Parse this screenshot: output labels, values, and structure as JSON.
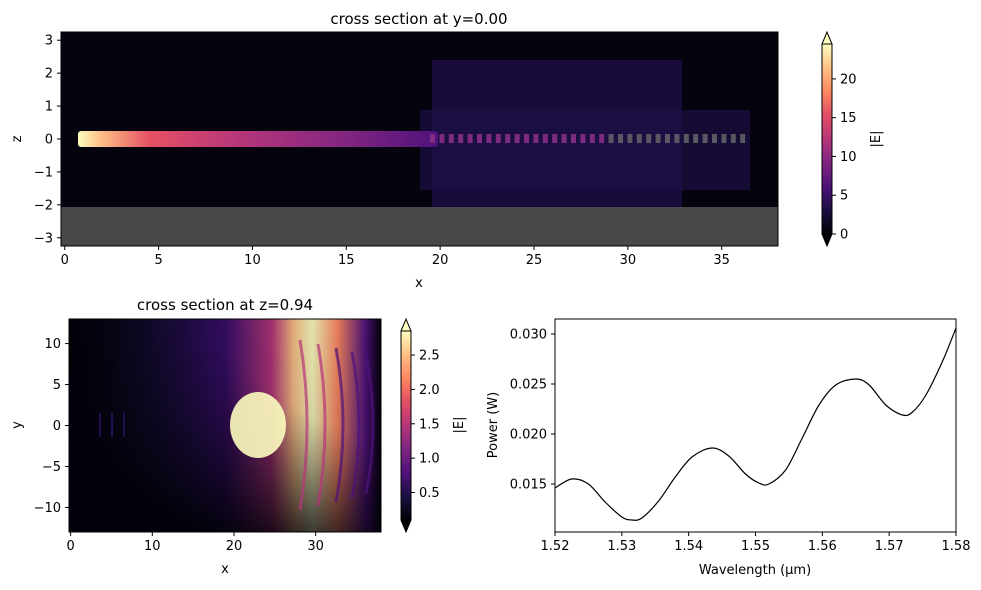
{
  "chart_data": [
    {
      "type": "heatmap",
      "title": "cross section at y=0.00",
      "xlabel": "x",
      "ylabel": "z",
      "xlim": [
        -0.2,
        38
      ],
      "ylim": [
        -3.25,
        3.25
      ],
      "xticks": [
        "0",
        "5",
        "10",
        "15",
        "20",
        "25",
        "30",
        "35"
      ],
      "yticks": [
        "−3",
        "−2",
        "−1",
        "0",
        "1",
        "2",
        "3"
      ],
      "colorbar": {
        "label": "|E|",
        "min": 0,
        "max": 24.5,
        "ticks": [
          "0",
          "5",
          "10",
          "15",
          "20"
        ],
        "extend": "both"
      },
      "colormap": "magma",
      "substrate_top": -2.1
    },
    {
      "type": "heatmap",
      "title": "cross section at z=0.94",
      "xlabel": "x",
      "ylabel": "y",
      "xlim": [
        -0.2,
        38
      ],
      "ylim": [
        -13,
        13
      ],
      "xticks": [
        "0",
        "10",
        "20",
        "30"
      ],
      "yticks": [
        "−10",
        "−5",
        "0",
        "5",
        "10"
      ],
      "colorbar": {
        "label": "|E|",
        "min": 0.1,
        "max": 2.85,
        "ticks": [
          "0.5",
          "1.0",
          "1.5",
          "2.0",
          "2.5"
        ],
        "extend": "both"
      },
      "colormap": "magma"
    },
    {
      "type": "line",
      "xlabel": "Wavelength (μm)",
      "ylabel": "Power (W)",
      "xlim": [
        1.52,
        1.58
      ],
      "ylim": [
        0.0102,
        0.0315
      ],
      "xticks": [
        "1.52",
        "1.53",
        "1.54",
        "1.55",
        "1.56",
        "1.57",
        "1.58"
      ],
      "yticks": [
        "0.015",
        "0.020",
        "0.025",
        "0.030"
      ],
      "line_color": "#000000",
      "x": [
        1.52,
        1.5225,
        1.525,
        1.5275,
        1.53,
        1.5315,
        1.533,
        1.5355,
        1.538,
        1.5405,
        1.5435,
        1.546,
        1.5485,
        1.5505,
        1.552,
        1.5545,
        1.557,
        1.5595,
        1.562,
        1.565,
        1.567,
        1.5695,
        1.572,
        1.5735,
        1.5755,
        1.578,
        1.58
      ],
      "y": [
        0.0146,
        0.0155,
        0.015,
        0.0132,
        0.0117,
        0.0114,
        0.0116,
        0.0133,
        0.0157,
        0.0177,
        0.0186,
        0.0178,
        0.016,
        0.0151,
        0.015,
        0.0164,
        0.0196,
        0.0229,
        0.0249,
        0.0255,
        0.0249,
        0.0229,
        0.0219,
        0.0222,
        0.0239,
        0.0273,
        0.0306
      ]
    }
  ]
}
